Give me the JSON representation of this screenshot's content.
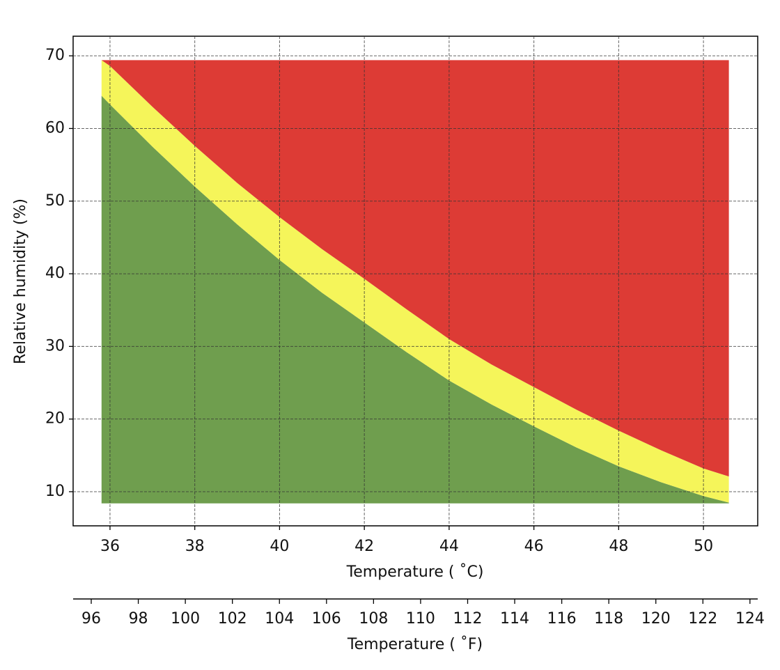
{
  "chart_data": {
    "type": "area",
    "x": [
      35.8,
      36,
      37,
      38,
      39,
      40,
      41,
      42,
      43,
      44,
      45,
      46,
      47,
      48,
      49,
      50,
      50.6
    ],
    "baseline": 8.4,
    "series": [
      {
        "color": "#6f9e4e",
        "values": [
          64.5,
          63.3,
          57.5,
          52.0,
          46.8,
          41.9,
          37.4,
          33.3,
          29.2,
          25.3,
          22.0,
          19.0,
          16.1,
          13.5,
          11.3,
          9.4,
          8.5
        ]
      },
      {
        "color": "#f5f55a",
        "values": [
          69.4,
          68.6,
          63.0,
          57.6,
          52.5,
          47.8,
          43.4,
          39.3,
          35.1,
          31.0,
          27.5,
          24.4,
          21.3,
          18.4,
          15.7,
          13.2,
          12.1
        ]
      },
      {
        "color": "#dd3b35",
        "values": [
          69.4,
          69.4,
          69.4,
          69.4,
          69.4,
          69.4,
          69.4,
          69.4,
          69.4,
          69.4,
          69.4,
          69.4,
          69.4,
          69.4,
          69.4,
          69.4,
          69.4
        ]
      }
    ],
    "xlabel": "Temperature ( ˚C)",
    "ylabel": "Relative humidity (%)",
    "x2label": "Temperature ( ˚F)",
    "xlim": [
      35.13,
      51.28
    ],
    "xticks": [
      36,
      38,
      40,
      42,
      44,
      46,
      48,
      50
    ],
    "ylim": [
      5.3,
      72.7
    ],
    "yticks": [
      10,
      20,
      30,
      40,
      50,
      60,
      70
    ],
    "x2lim": [
      95.23,
      124.33
    ],
    "x2ticks": [
      96,
      98,
      100,
      102,
      104,
      106,
      108,
      110,
      112,
      114,
      116,
      118,
      120,
      122,
      124
    ],
    "grid": true
  }
}
